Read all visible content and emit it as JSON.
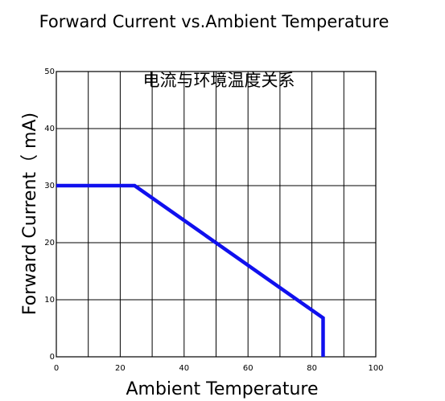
{
  "chart_data": {
    "type": "line",
    "title": "Forward Current vs.Ambient Temperature",
    "subtitle": "电流与环境温度关系",
    "xlabel": "Ambient Temperature",
    "ylabel": "Forward Current（ mA)",
    "xlim": [
      0,
      100
    ],
    "ylim": [
      0,
      50
    ],
    "xticks": [
      "0",
      "20",
      "40",
      "60",
      "80",
      "100"
    ],
    "yticks": [
      "0",
      "10",
      "20",
      "30",
      "40",
      "50"
    ],
    "grid": true,
    "line_color": "#1010ee",
    "series": [
      {
        "x": [
          0,
          24.5,
          83.5,
          83.5
        ],
        "y": [
          30,
          30,
          6.8,
          0
        ]
      }
    ]
  }
}
